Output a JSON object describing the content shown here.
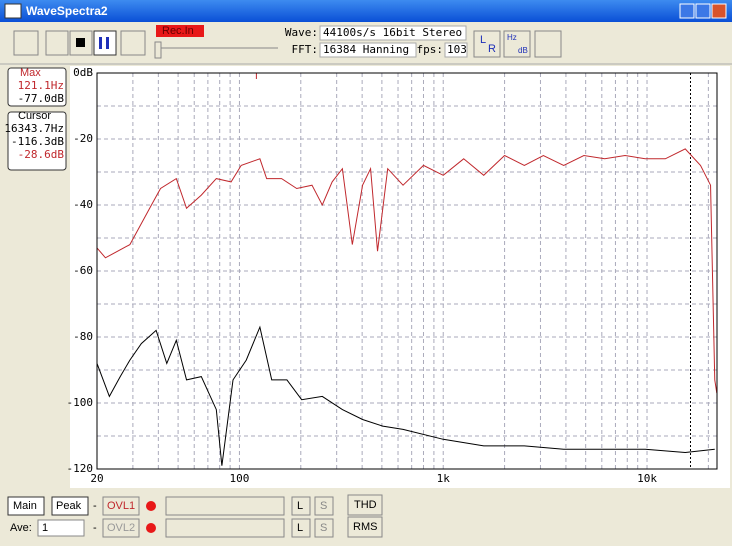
{
  "window": {
    "title": "WaveSpectra2"
  },
  "toolbar": {
    "rec_label": "Rec.In",
    "wave_label": "Wave:",
    "wave_value": "44100s/s 16bit Stereo",
    "fft_label": "FFT:",
    "fft_value": "16384 Hanning",
    "fps_label": "fps:",
    "fps_value": "103",
    "lr_icon": [
      "L",
      "R"
    ],
    "hzdb_icon": [
      "Hz",
      "dB"
    ]
  },
  "info": {
    "max_label": "Max",
    "max_freq": "121.1Hz",
    "max_level": "-77.0dB",
    "cursor_label": "Cursor",
    "cursor_freq": "16343.7Hz",
    "cursor_level_1": "-116.3dB",
    "cursor_level_2": "-28.6dB"
  },
  "chart_data": {
    "type": "line",
    "log_x": true,
    "grid": true,
    "xlim": [
      20,
      22050
    ],
    "ylim": [
      -120,
      0
    ],
    "xticks": [
      20,
      100,
      {
        "value": 1000,
        "label": "1k"
      },
      {
        "value": 10000,
        "label": "10k"
      }
    ],
    "yticks": [
      {
        "value": 0,
        "label": "0dB"
      },
      -20,
      -40,
      -60,
      -80,
      -100,
      -120
    ],
    "x_minor_grid": [
      30,
      40,
      50,
      60,
      70,
      80,
      90,
      200,
      300,
      400,
      500,
      600,
      700,
      800,
      900,
      2000,
      3000,
      4000,
      5000,
      6000,
      7000,
      8000,
      9000,
      20000
    ],
    "y_minor_grid": [
      -10,
      -30,
      -50,
      -70,
      -90,
      -110
    ],
    "cursor_x": 16343.7,
    "max_x": 121.1,
    "series": [
      {
        "color": "#c0282d",
        "x": [
          20,
          22,
          29,
          37,
          41,
          49,
          55,
          65,
          77,
          91,
          102,
          126,
          136,
          161,
          191,
          227,
          255,
          285,
          320,
          358,
          402,
          440,
          476,
          534,
          635,
          800,
          1000,
          1260,
          1580,
          2000,
          2500,
          3100,
          3900,
          4900,
          6200,
          7800,
          9800,
          12300,
          15400,
          18300,
          20500,
          21500,
          22000
        ],
        "values": [
          -53,
          -56,
          -52,
          -40,
          -35,
          -32,
          -41,
          -37,
          -32,
          -33,
          -28,
          -26,
          -32,
          -32,
          -35,
          -34,
          -40,
          -33,
          -29,
          -52,
          -34,
          -29,
          -54,
          -29,
          -34,
          -28,
          -31,
          -26,
          -31,
          -25,
          -28,
          -25,
          -28,
          -25,
          -26,
          -25,
          -26,
          -26,
          -23,
          -28,
          -34,
          -93,
          -97
        ]
      },
      {
        "color": "#000000",
        "x": [
          20,
          23,
          26,
          29,
          33,
          39,
          44,
          49,
          55,
          65,
          77,
          82,
          93,
          108,
          126,
          144,
          171,
          202,
          255,
          320,
          402,
          505,
          635,
          1000,
          1580,
          2500,
          3900,
          6200,
          9800,
          15400,
          21500
        ],
        "values": [
          -88,
          -98,
          -92,
          -87,
          -82,
          -78,
          -88,
          -81,
          -93,
          -92,
          -102,
          -119,
          -93,
          -87,
          -77,
          -93,
          -93,
          -99,
          -98,
          -102,
          -105,
          -107,
          -108,
          -111,
          -113,
          -113,
          -114,
          -114,
          -114,
          -115,
          -114
        ]
      }
    ]
  },
  "controls": {
    "main": "Main",
    "peak": "Peak",
    "dash1": "-",
    "ovl1": "OVL1",
    "l1": "L",
    "s1": "S",
    "thd": "THD",
    "ave_label": "Ave:",
    "ave_value": "1",
    "dash2": "-",
    "ovl2": "OVL2",
    "l2": "L",
    "s2": "S",
    "rms": "RMS"
  }
}
